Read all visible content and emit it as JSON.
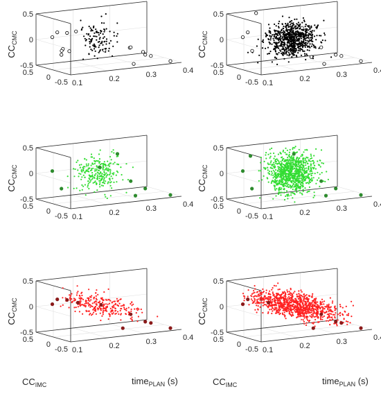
{
  "chart_data": [
    {
      "type": "scatter",
      "panel": "top-left",
      "color": "#000000",
      "outlier_fill": "none",
      "xlabel": "",
      "ylabel": "CC_CMC",
      "zlabel": "",
      "xlim": [
        0.1,
        0.4
      ],
      "xticks": [
        "0.1",
        "0.2",
        "0.3",
        "0.4"
      ],
      "ylim": [
        -0.5,
        0.5
      ],
      "yticks": [
        "-0.5",
        "0",
        "0.5"
      ],
      "zlim": [
        -0.5,
        0.5
      ],
      "zticks": [
        "-0.5",
        "0",
        "0.5"
      ],
      "cluster": {
        "center": {
          "x": 0.22,
          "y": 0.0,
          "z": 0.0
        },
        "spread": {
          "x": 0.02,
          "y": 0.11,
          "z": 0.16
        },
        "count": 110
      },
      "outliers": [
        {
          "x": 0.12,
          "y": 0.1,
          "z": 0.2
        },
        {
          "x": 0.13,
          "y": 0.35,
          "z": 0.05
        },
        {
          "x": 0.14,
          "y": 0.15,
          "z": -0.15
        },
        {
          "x": 0.15,
          "y": 0.3,
          "z": -0.3
        },
        {
          "x": 0.16,
          "y": 0.4,
          "z": -0.25
        },
        {
          "x": 0.17,
          "y": 0.35,
          "z": 0.1
        },
        {
          "x": 0.18,
          "y": 0.2,
          "z": 0.15
        },
        {
          "x": 0.19,
          "y": 0.5,
          "z": -0.3
        },
        {
          "x": 0.21,
          "y": -0.3,
          "z": -0.15
        },
        {
          "x": 0.26,
          "y": -0.5,
          "z": -0.1
        },
        {
          "x": 0.28,
          "y": -0.4,
          "z": -0.45
        },
        {
          "x": 0.3,
          "y": -0.1,
          "z": -0.2
        },
        {
          "x": 0.31,
          "y": -0.35,
          "z": -0.25
        },
        {
          "x": 0.33,
          "y": -0.2,
          "z": -0.35
        },
        {
          "x": 0.35,
          "y": -0.15,
          "z": -0.4
        },
        {
          "x": 0.37,
          "y": -0.5,
          "z": -0.45
        }
      ]
    },
    {
      "type": "scatter",
      "panel": "top-right",
      "color": "#000000",
      "outlier_fill": "none",
      "xlabel": "",
      "ylabel": "CC_CMC",
      "zlabel": "",
      "xlim": [
        0.1,
        0.4
      ],
      "xticks": [
        "0.1",
        "0.2",
        "0.3",
        "0.4"
      ],
      "ylim": [
        -0.5,
        0.5
      ],
      "yticks": [
        "-0.5",
        "0",
        "0.5"
      ],
      "zlim": [
        -0.5,
        0.5
      ],
      "zticks": [
        "-0.5",
        "0",
        "0.5"
      ],
      "cluster": {
        "center": {
          "x": 0.23,
          "y": 0.0,
          "z": 0.0
        },
        "spread": {
          "x": 0.03,
          "y": 0.13,
          "z": 0.16
        },
        "count": 750
      },
      "outliers": [
        {
          "x": 0.12,
          "y": 0.1,
          "z": 0.2
        },
        {
          "x": 0.13,
          "y": 0.35,
          "z": 0.05
        },
        {
          "x": 0.16,
          "y": 0.4,
          "z": -0.25
        },
        {
          "x": 0.18,
          "y": 0.5,
          "z": 0.45
        },
        {
          "x": 0.22,
          "y": -0.4,
          "z": 0.3
        },
        {
          "x": 0.25,
          "y": -0.35,
          "z": -0.3
        },
        {
          "x": 0.28,
          "y": -0.4,
          "z": -0.45
        },
        {
          "x": 0.3,
          "y": -0.1,
          "z": -0.2
        },
        {
          "x": 0.33,
          "y": -0.2,
          "z": -0.35
        },
        {
          "x": 0.35,
          "y": -0.15,
          "z": -0.4
        },
        {
          "x": 0.37,
          "y": -0.5,
          "z": -0.45
        }
      ]
    },
    {
      "type": "scatter",
      "panel": "middle-left",
      "color": "#33dd33",
      "outlier_fill": "#2e8b2e",
      "xlabel": "",
      "ylabel": "CC_CMC",
      "zlabel": "",
      "xlim": [
        0.1,
        0.4
      ],
      "xticks": [
        "0.1",
        "0.2",
        "0.3",
        "0.4"
      ],
      "ylim": [
        -0.5,
        0.5
      ],
      "yticks": [
        "-0.5",
        "0",
        "0.5"
      ],
      "zlim": [
        -0.5,
        0.5
      ],
      "zticks": [
        "-0.5",
        "0",
        "0.5"
      ],
      "cluster": {
        "center": {
          "x": 0.22,
          "y": 0.0,
          "z": 0.0
        },
        "spread": {
          "x": 0.03,
          "y": 0.15,
          "z": 0.18
        },
        "count": 260
      },
      "outliers": [
        {
          "x": 0.13,
          "y": 0.35,
          "z": 0.05
        },
        {
          "x": 0.15,
          "y": 0.3,
          "z": -0.3
        },
        {
          "x": 0.23,
          "y": 0.05,
          "z": 0.1
        },
        {
          "x": 0.25,
          "y": -0.25,
          "z": 0.4
        },
        {
          "x": 0.28,
          "y": -0.45,
          "z": -0.4
        },
        {
          "x": 0.3,
          "y": -0.1,
          "z": -0.2
        },
        {
          "x": 0.33,
          "y": -0.2,
          "z": -0.35
        },
        {
          "x": 0.37,
          "y": -0.5,
          "z": -0.45
        }
      ]
    },
    {
      "type": "scatter",
      "panel": "middle-right",
      "color": "#33dd33",
      "outlier_fill": "#2e8b2e",
      "xlabel": "",
      "ylabel": "CC_CMC",
      "zlabel": "",
      "xlim": [
        0.1,
        0.4
      ],
      "xticks": [
        "0.1",
        "0.2",
        "0.3",
        "0.4"
      ],
      "ylim": [
        -0.5,
        0.5
      ],
      "yticks": [
        "-0.5",
        "0",
        "0.5"
      ],
      "zlim": [
        -0.5,
        0.5
      ],
      "zticks": [
        "-0.5",
        "0",
        "0.5"
      ],
      "cluster": {
        "center": {
          "x": 0.23,
          "y": 0.0,
          "z": 0.0
        },
        "spread": {
          "x": 0.03,
          "y": 0.16,
          "z": 0.2
        },
        "count": 950
      },
      "outliers": [
        {
          "x": 0.13,
          "y": 0.35,
          "z": 0.05
        },
        {
          "x": 0.15,
          "y": 0.3,
          "z": -0.3
        },
        {
          "x": 0.16,
          "y": 0.45,
          "z": 0.3
        },
        {
          "x": 0.24,
          "y": 0.05,
          "z": 0.35
        },
        {
          "x": 0.28,
          "y": -0.45,
          "z": -0.4
        },
        {
          "x": 0.3,
          "y": -0.1,
          "z": -0.2
        },
        {
          "x": 0.33,
          "y": -0.2,
          "z": -0.35
        },
        {
          "x": 0.37,
          "y": -0.5,
          "z": -0.45
        }
      ]
    },
    {
      "type": "scatter",
      "panel": "bottom-left",
      "color": "#ff2020",
      "outlier_fill": "#8b1a1a",
      "xlabel": "time_PLAN (s)",
      "ylabel": "CC_CMC",
      "zlabel": "CC_IMC",
      "xlim": [
        0.1,
        0.4
      ],
      "xticks": [
        "0.1",
        "0.2",
        "0.3",
        "0.4"
      ],
      "ylim": [
        -0.5,
        0.5
      ],
      "yticks": [
        "-0.5",
        "0",
        "0.5"
      ],
      "zlim": [
        -0.5,
        0.5
      ],
      "zticks": [
        "-0.5",
        "0",
        "0.5"
      ],
      "cluster": {
        "center": {
          "x": 0.23,
          "y": 0.0,
          "z": 0.0
        },
        "spread": {
          "x": 0.05,
          "y": 0.1,
          "z": 0.1
        },
        "count": 280,
        "tilt": -0.9
      },
      "outliers": [
        {
          "x": 0.12,
          "y": 0.1,
          "z": 0.2
        },
        {
          "x": 0.13,
          "y": 0.35,
          "z": 0.05
        },
        {
          "x": 0.17,
          "y": 0.35,
          "z": 0.1
        },
        {
          "x": 0.19,
          "y": 0.25,
          "z": 0.05
        },
        {
          "x": 0.22,
          "y": -0.1,
          "z": 0.05
        },
        {
          "x": 0.26,
          "y": -0.3,
          "z": -0.4
        },
        {
          "x": 0.3,
          "y": -0.1,
          "z": -0.2
        },
        {
          "x": 0.33,
          "y": -0.2,
          "z": -0.35
        },
        {
          "x": 0.35,
          "y": -0.15,
          "z": -0.4
        },
        {
          "x": 0.37,
          "y": -0.5,
          "z": -0.45
        }
      ]
    },
    {
      "type": "scatter",
      "panel": "bottom-right",
      "color": "#ff2020",
      "outlier_fill": "#8b1a1a",
      "xlabel": "time_PLAN (s)",
      "ylabel": "CC_CMC",
      "zlabel": "CC_IMC",
      "xlim": [
        0.1,
        0.4
      ],
      "xticks": [
        "0.1",
        "0.2",
        "0.3",
        "0.4"
      ],
      "ylim": [
        -0.5,
        0.5
      ],
      "yticks": [
        "-0.5",
        "0",
        "0.5"
      ],
      "zlim": [
        -0.5,
        0.5
      ],
      "zticks": [
        "-0.5",
        "0",
        "0.5"
      ],
      "cluster": {
        "center": {
          "x": 0.24,
          "y": 0.0,
          "z": 0.0
        },
        "spread": {
          "x": 0.06,
          "y": 0.12,
          "z": 0.12
        },
        "count": 1000,
        "tilt": -0.9
      },
      "outliers": [
        {
          "x": 0.12,
          "y": 0.1,
          "z": 0.2
        },
        {
          "x": 0.13,
          "y": 0.35,
          "z": 0.05
        },
        {
          "x": 0.19,
          "y": 0.25,
          "z": 0.05
        },
        {
          "x": 0.26,
          "y": -0.3,
          "z": -0.4
        },
        {
          "x": 0.3,
          "y": -0.1,
          "z": -0.2
        },
        {
          "x": 0.33,
          "y": -0.2,
          "z": -0.35
        },
        {
          "x": 0.35,
          "y": -0.15,
          "z": -0.4
        },
        {
          "x": 0.37,
          "y": -0.5,
          "z": -0.45
        }
      ]
    }
  ]
}
